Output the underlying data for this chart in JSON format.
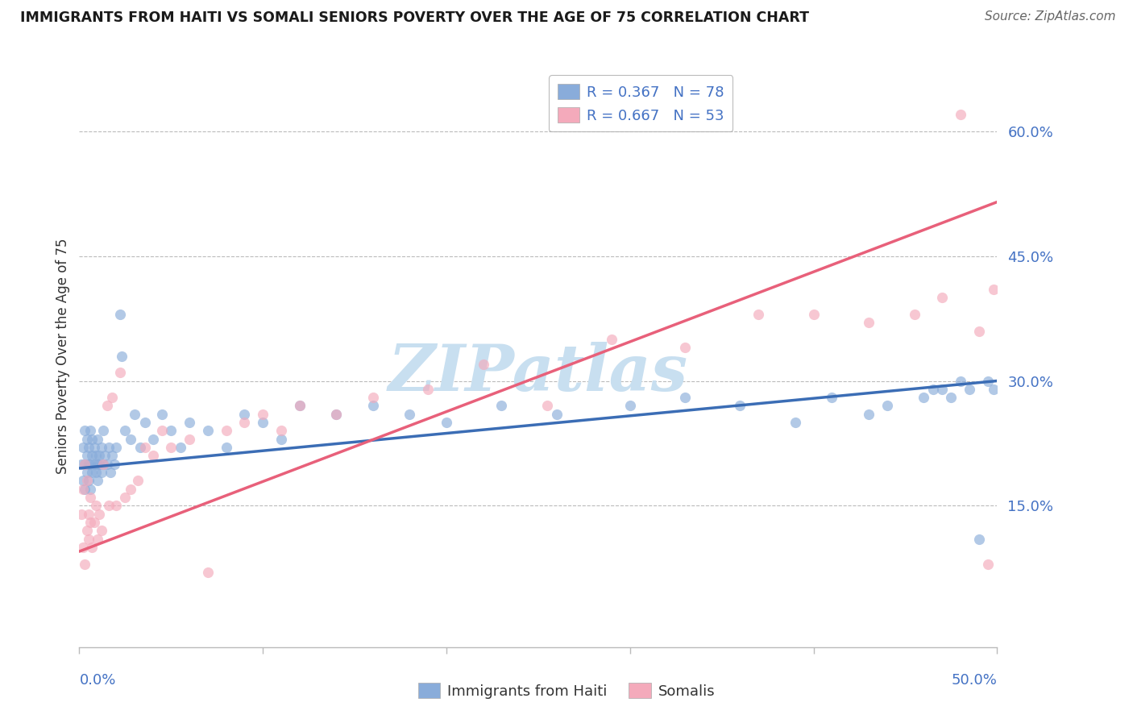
{
  "title": "IMMIGRANTS FROM HAITI VS SOMALI SENIORS POVERTY OVER THE AGE OF 75 CORRELATION CHART",
  "source": "Source: ZipAtlas.com",
  "ylabel": "Seniors Poverty Over the Age of 75",
  "ytick_values": [
    0.15,
    0.3,
    0.45,
    0.6
  ],
  "xlim": [
    0.0,
    0.5
  ],
  "ylim": [
    -0.02,
    0.68
  ],
  "haiti_color": "#89ACDA",
  "somali_color": "#F4AABB",
  "haiti_line_color": "#3B6DB5",
  "somali_line_color": "#E8607A",
  "watermark_text": "ZIPatlas",
  "watermark_color": "#C8DFF0",
  "haiti_N": 78,
  "somali_N": 53,
  "haiti_R": 0.367,
  "somali_R": 0.667,
  "haiti_line_x0": 0.0,
  "haiti_line_y0": 0.195,
  "haiti_line_x1": 0.5,
  "haiti_line_y1": 0.3,
  "somali_line_x0": 0.0,
  "somali_line_y0": 0.095,
  "somali_line_x1": 0.5,
  "somali_line_y1": 0.515,
  "haiti_pts_x": [
    0.001,
    0.002,
    0.002,
    0.003,
    0.003,
    0.003,
    0.004,
    0.004,
    0.004,
    0.005,
    0.005,
    0.005,
    0.006,
    0.006,
    0.006,
    0.007,
    0.007,
    0.007,
    0.008,
    0.008,
    0.009,
    0.009,
    0.01,
    0.01,
    0.01,
    0.011,
    0.011,
    0.012,
    0.012,
    0.013,
    0.013,
    0.014,
    0.015,
    0.016,
    0.017,
    0.018,
    0.019,
    0.02,
    0.022,
    0.023,
    0.025,
    0.028,
    0.03,
    0.033,
    0.036,
    0.04,
    0.045,
    0.05,
    0.055,
    0.06,
    0.07,
    0.08,
    0.09,
    0.1,
    0.11,
    0.12,
    0.14,
    0.16,
    0.18,
    0.2,
    0.23,
    0.26,
    0.3,
    0.33,
    0.36,
    0.39,
    0.41,
    0.43,
    0.44,
    0.46,
    0.465,
    0.47,
    0.475,
    0.48,
    0.485,
    0.49,
    0.495,
    0.498
  ],
  "haiti_pts_y": [
    0.2,
    0.22,
    0.18,
    0.2,
    0.24,
    0.17,
    0.21,
    0.19,
    0.23,
    0.2,
    0.18,
    0.22,
    0.2,
    0.24,
    0.17,
    0.21,
    0.19,
    0.23,
    0.2,
    0.22,
    0.19,
    0.21,
    0.2,
    0.23,
    0.18,
    0.21,
    0.2,
    0.19,
    0.22,
    0.2,
    0.24,
    0.21,
    0.2,
    0.22,
    0.19,
    0.21,
    0.2,
    0.22,
    0.38,
    0.33,
    0.24,
    0.23,
    0.26,
    0.22,
    0.25,
    0.23,
    0.26,
    0.24,
    0.22,
    0.25,
    0.24,
    0.22,
    0.26,
    0.25,
    0.23,
    0.27,
    0.26,
    0.27,
    0.26,
    0.25,
    0.27,
    0.26,
    0.27,
    0.28,
    0.27,
    0.25,
    0.28,
    0.26,
    0.27,
    0.28,
    0.29,
    0.29,
    0.28,
    0.3,
    0.29,
    0.11,
    0.3,
    0.29
  ],
  "somali_pts_x": [
    0.001,
    0.002,
    0.002,
    0.003,
    0.003,
    0.004,
    0.004,
    0.005,
    0.005,
    0.006,
    0.006,
    0.007,
    0.008,
    0.009,
    0.01,
    0.011,
    0.012,
    0.013,
    0.015,
    0.016,
    0.018,
    0.02,
    0.022,
    0.025,
    0.028,
    0.032,
    0.036,
    0.04,
    0.045,
    0.05,
    0.06,
    0.07,
    0.08,
    0.09,
    0.1,
    0.11,
    0.12,
    0.14,
    0.16,
    0.19,
    0.22,
    0.255,
    0.29,
    0.33,
    0.37,
    0.4,
    0.43,
    0.455,
    0.47,
    0.48,
    0.49,
    0.495,
    0.498
  ],
  "somali_pts_y": [
    0.14,
    0.1,
    0.17,
    0.08,
    0.2,
    0.12,
    0.18,
    0.11,
    0.14,
    0.13,
    0.16,
    0.1,
    0.13,
    0.15,
    0.11,
    0.14,
    0.12,
    0.2,
    0.27,
    0.15,
    0.28,
    0.15,
    0.31,
    0.16,
    0.17,
    0.18,
    0.22,
    0.21,
    0.24,
    0.22,
    0.23,
    0.07,
    0.24,
    0.25,
    0.26,
    0.24,
    0.27,
    0.26,
    0.28,
    0.29,
    0.32,
    0.27,
    0.35,
    0.34,
    0.38,
    0.38,
    0.37,
    0.38,
    0.4,
    0.62,
    0.36,
    0.08,
    0.41
  ]
}
